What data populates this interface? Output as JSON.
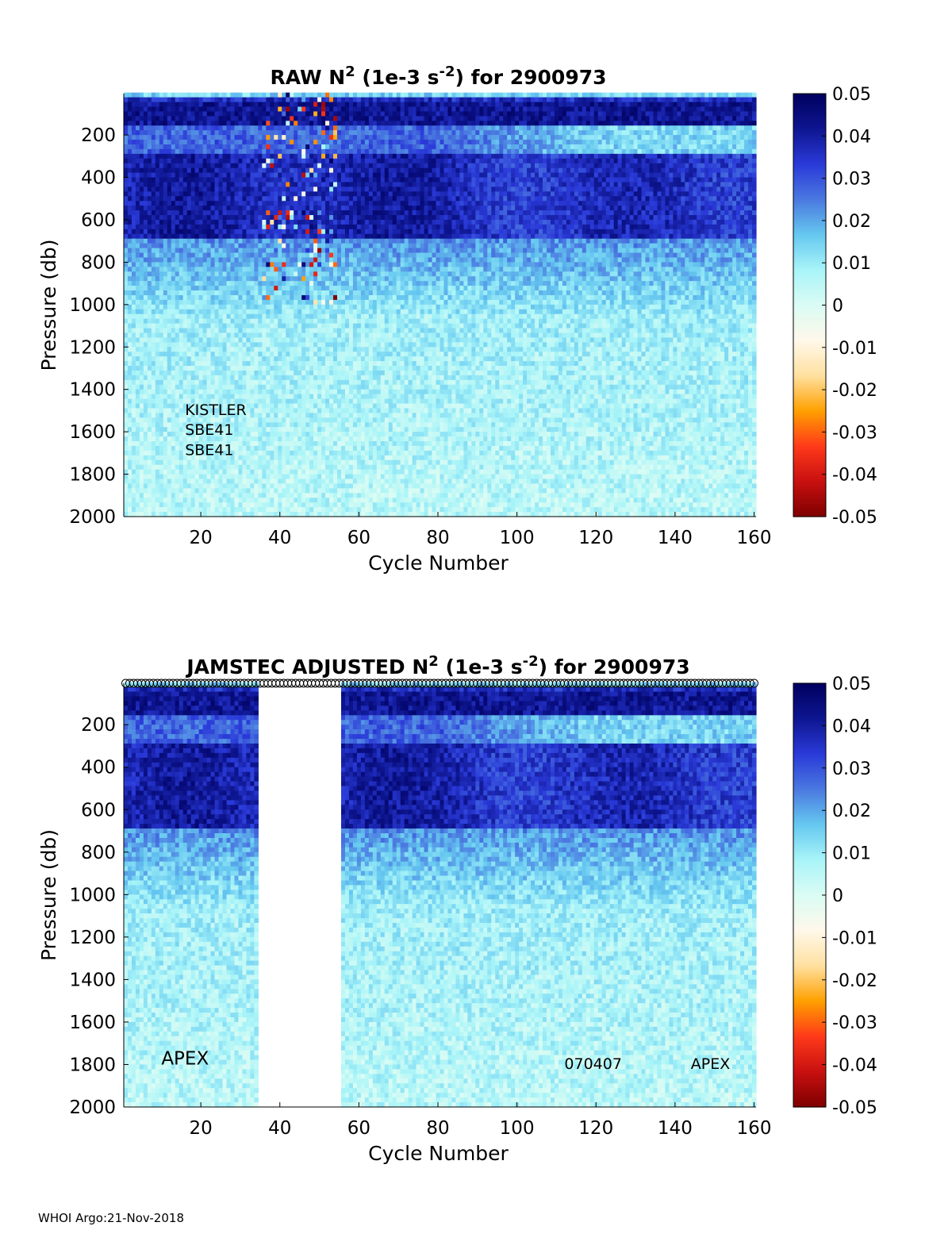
{
  "footer": "WHOI Argo:21-Nov-2018",
  "colorbar": {
    "colors": [
      "#7f0000",
      "#c81010",
      "#ff3a1a",
      "#ffa000",
      "#ffe0a0",
      "#fff8ea",
      "#dafcf4",
      "#a8f4f8",
      "#66c8f0",
      "#4a78e0",
      "#2a3ad8",
      "#0e1690",
      "#00005f"
    ],
    "tick_values": [
      0.05,
      0.04,
      0.03,
      0.02,
      0.01,
      0,
      -0.01,
      -0.02,
      -0.03,
      -0.04,
      -0.05
    ],
    "tick_labels": [
      "0.05",
      "0.04",
      "0.03",
      "0.02",
      "0.01",
      "0",
      "-0.01",
      "-0.02",
      "-0.03",
      "-0.04",
      "-0.05"
    ]
  },
  "chart_data": [
    {
      "type": "heatmap",
      "title_parts": [
        "RAW N",
        "2",
        " (1e-3 s",
        "-2",
        ") for 2900973"
      ],
      "xlabel": "Cycle Number",
      "ylabel": "Pressure (db)",
      "xlim": [
        1,
        160
      ],
      "ylim": [
        2000,
        5
      ],
      "clim": [
        -0.05,
        0.05
      ],
      "x_ticks": [
        20,
        40,
        60,
        80,
        100,
        120,
        140,
        160
      ],
      "x_tick_labels": [
        "20",
        "40",
        "60",
        "80",
        "100",
        "120",
        "140",
        "160"
      ],
      "y_ticks": [
        200,
        400,
        600,
        800,
        1000,
        1200,
        1400,
        1600,
        1800,
        2000
      ],
      "y_tick_labels": [
        "200",
        "400",
        "600",
        "800",
        "1000",
        "1200",
        "1400",
        "1600",
        "1800",
        "2000"
      ],
      "annotations": [
        {
          "text": "KISTLER",
          "x": 16,
          "y": 1520
        },
        {
          "text": "SBE41",
          "x": 16,
          "y": 1615
        },
        {
          "text": "SBE41",
          "x": 16,
          "y": 1710
        }
      ],
      "noisy_cycles": [
        36,
        54
      ],
      "gap_cycles": null,
      "markers_top": false
    },
    {
      "type": "heatmap",
      "title_parts": [
        "JAMSTEC  ADJUSTED N",
        "2",
        " (1e-3 s",
        "-2",
        ") for 2900973"
      ],
      "xlabel": "Cycle Number",
      "ylabel": "Pressure (db)",
      "xlim": [
        1,
        160
      ],
      "ylim": [
        2000,
        5
      ],
      "clim": [
        -0.05,
        0.05
      ],
      "x_ticks": [
        20,
        40,
        60,
        80,
        100,
        120,
        140,
        160
      ],
      "x_tick_labels": [
        "20",
        "40",
        "60",
        "80",
        "100",
        "120",
        "140",
        "160"
      ],
      "y_ticks": [
        200,
        400,
        600,
        800,
        1000,
        1200,
        1400,
        1600,
        1800,
        2000
      ],
      "y_tick_labels": [
        "200",
        "400",
        "600",
        "800",
        "1000",
        "1200",
        "1400",
        "1600",
        "1800",
        "2000"
      ],
      "annotations": [
        {
          "text": "APEX",
          "x": 10,
          "y": 1800
        },
        {
          "text": "070407",
          "x": 112,
          "y": 1820
        },
        {
          "text": "APEX",
          "x": 144,
          "y": 1820
        }
      ],
      "noisy_cycles": null,
      "gap_cycles": [
        35,
        55
      ],
      "markers_top": true
    }
  ]
}
